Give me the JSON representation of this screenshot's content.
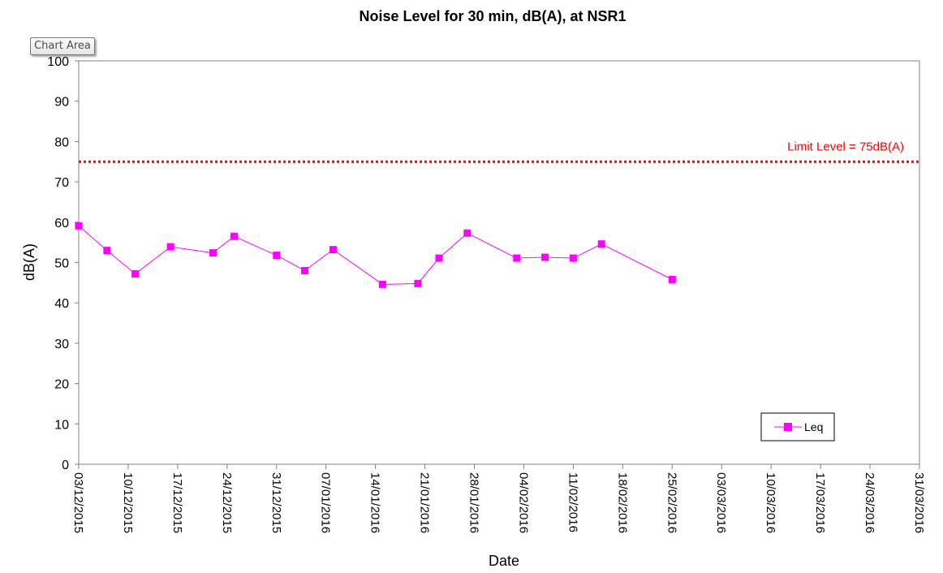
{
  "tooltip": {
    "label": "Chart Area"
  },
  "chart_data": {
    "type": "line",
    "title": "Noise Level for 30 min, dB(A), at NSR1",
    "xlabel": "Date",
    "ylabel": "dB(A)",
    "ylim": [
      0,
      100
    ],
    "yticks": [
      0,
      10,
      20,
      30,
      40,
      50,
      60,
      70,
      80,
      90,
      100
    ],
    "xlim": [
      "03/12/2015",
      "31/03/2016"
    ],
    "xticks": [
      "03/12/2015",
      "10/12/2015",
      "17/12/2015",
      "24/12/2015",
      "31/12/2015",
      "07/01/2016",
      "14/01/2016",
      "21/01/2016",
      "28/01/2016",
      "04/02/2016",
      "11/02/2016",
      "18/02/2016",
      "25/02/2016",
      "03/03/2016",
      "10/03/2016",
      "17/03/2016",
      "24/03/2016",
      "31/03/2016"
    ],
    "grid": false,
    "legend_position": "bottom-right",
    "series": [
      {
        "name": "Leq",
        "color": "#ff00ff",
        "marker": "square",
        "points": [
          {
            "x": "03/12/2015",
            "y": 59.1
          },
          {
            "x": "07/12/2015",
            "y": 53.0
          },
          {
            "x": "11/12/2015",
            "y": 47.2
          },
          {
            "x": "16/12/2015",
            "y": 53.9
          },
          {
            "x": "22/12/2015",
            "y": 52.4
          },
          {
            "x": "25/12/2015",
            "y": 56.5
          },
          {
            "x": "31/12/2015",
            "y": 51.8
          },
          {
            "x": "04/01/2016",
            "y": 48.0
          },
          {
            "x": "08/01/2016",
            "y": 53.2
          },
          {
            "x": "15/01/2016",
            "y": 44.6
          },
          {
            "x": "20/01/2016",
            "y": 44.8
          },
          {
            "x": "23/01/2016",
            "y": 51.1
          },
          {
            "x": "27/01/2016",
            "y": 57.3
          },
          {
            "x": "03/02/2016",
            "y": 51.1
          },
          {
            "x": "07/02/2016",
            "y": 51.3
          },
          {
            "x": "11/02/2016",
            "y": 51.1
          },
          {
            "x": "15/02/2016",
            "y": 54.6
          },
          {
            "x": "25/02/2016",
            "y": 45.8
          }
        ]
      }
    ],
    "limit_line": {
      "value": 75,
      "label": "Limit Level = 75dB(A)",
      "color": "#ff0000"
    }
  }
}
